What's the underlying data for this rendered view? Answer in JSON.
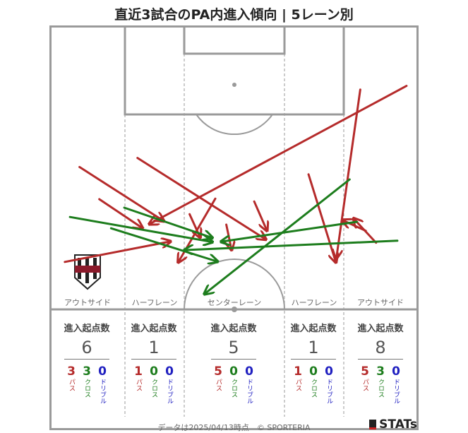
{
  "title": "直近3試合のPA内進入傾向 | 5レーン別",
  "footer": "データは2025/04/13時点　© SPORTERIA",
  "brand": {
    "name": "STATs"
  },
  "club_emblem": {
    "text": "VISSEL",
    "colors": [
      "#8b1a2b",
      "#ffffff",
      "#222222"
    ]
  },
  "colors": {
    "pass": "#b52b2b",
    "cross": "#1d7d1d",
    "dribble": "#1f1fc0",
    "pitch_line": "#9a9a9a"
  },
  "chart_data": {
    "type": "line",
    "title": "直近3試合のPA内進入傾向 | 5レーン別",
    "legend_labels": {
      "pass": "パス",
      "cross": "クロス",
      "dribble": "ドリブル"
    },
    "lanes": [
      {
        "name": "アウトサイド",
        "header": "進入起点数",
        "total": 6,
        "pass": 3,
        "cross": 3,
        "dribble": 0
      },
      {
        "name": "ハーフレーン",
        "header": "進入起点数",
        "total": 1,
        "pass": 1,
        "cross": 0,
        "dribble": 0
      },
      {
        "name": "センターレーン",
        "header": "進入起点数",
        "total": 5,
        "pass": 5,
        "cross": 0,
        "dribble": 0
      },
      {
        "name": "ハーフレーン",
        "header": "進入起点数",
        "total": 1,
        "pass": 1,
        "cross": 0,
        "dribble": 0
      },
      {
        "name": "アウトサイド",
        "header": "進入起点数",
        "total": 8,
        "pass": 5,
        "cross": 3,
        "dribble": 0
      }
    ],
    "arrows": [
      {
        "type": "pass",
        "from": [
          8.0,
          49.6
        ],
        "to": [
          30.8,
          68.6
        ]
      },
      {
        "type": "pass",
        "from": [
          13.4,
          61.0
        ],
        "to": [
          25.0,
          71.1
        ]
      },
      {
        "type": "pass",
        "from": [
          4.0,
          83.2
        ],
        "to": [
          32.6,
          76.0
        ]
      },
      {
        "type": "pass",
        "from": [
          23.8,
          46.4
        ],
        "to": [
          58.6,
          75.1
        ]
      },
      {
        "type": "pass",
        "from": [
          45.0,
          60.8
        ],
        "to": [
          35.0,
          83.1
        ]
      },
      {
        "type": "pass",
        "from": [
          38.0,
          66.3
        ],
        "to": [
          40.8,
          74.3
        ]
      },
      {
        "type": "pass",
        "from": [
          55.6,
          61.8
        ],
        "to": [
          59.0,
          71.9
        ]
      },
      {
        "type": "pass",
        "from": [
          48.0,
          70.0
        ],
        "to": [
          49.4,
          78.7
        ]
      },
      {
        "type": "pass",
        "from": [
          86.0,
          72.2
        ],
        "to": [
          79.8,
          68.5
        ]
      },
      {
        "type": "pass",
        "from": [
          70.4,
          52.2
        ],
        "to": [
          77.8,
          83.1
        ]
      },
      {
        "type": "pass",
        "from": [
          97.1,
          20.9
        ],
        "to": [
          27.2,
          69.7
        ]
      },
      {
        "type": "pass",
        "from": [
          84.5,
          22.2
        ],
        "to": [
          78.0,
          81.7
        ]
      },
      {
        "type": "pass",
        "from": [
          88.8,
          76.4
        ],
        "to": [
          82.8,
          68.0
        ]
      },
      {
        "type": "cross",
        "from": [
          16.6,
          71.3
        ],
        "to": [
          45.4,
          83.0
        ]
      },
      {
        "type": "cross",
        "from": [
          5.4,
          67.3
        ],
        "to": [
          44.0,
          76.1
        ]
      },
      {
        "type": "cross",
        "from": [
          20.2,
          64.0
        ],
        "to": [
          44.0,
          74.6
        ]
      },
      {
        "type": "cross",
        "from": [
          94.6,
          75.7
        ],
        "to": [
          36.8,
          79.0
        ]
      },
      {
        "type": "cross",
        "from": [
          81.6,
          54.0
        ],
        "to": [
          42.2,
          94.4
        ]
      },
      {
        "type": "cross",
        "from": [
          83.6,
          69.0
        ],
        "to": [
          46.8,
          76.0
        ]
      }
    ]
  }
}
